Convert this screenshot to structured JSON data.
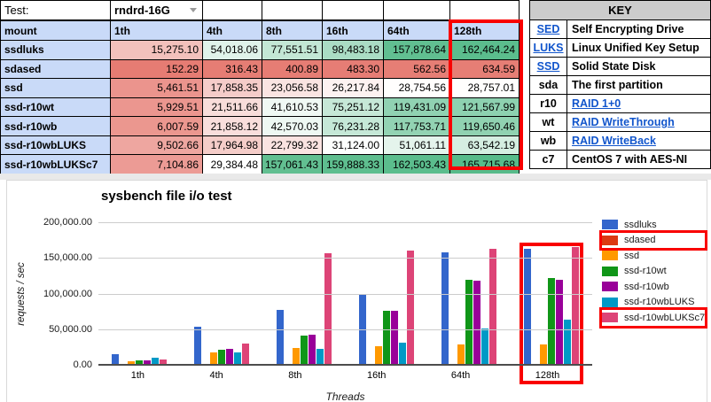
{
  "test_row": {
    "label": "Test:",
    "value": "rndrd-16G"
  },
  "table": {
    "columns": [
      "mount",
      "1th",
      "4th",
      "8th",
      "16th",
      "64th",
      "128th"
    ],
    "rows": [
      {
        "mount": "ssdluks",
        "values": [
          "15,275.10",
          "54,018.06",
          "77,551.51",
          "98,483.18",
          "157,878.64",
          "162,464.24"
        ]
      },
      {
        "mount": "sdased",
        "values": [
          "152.29",
          "316.43",
          "400.89",
          "483.30",
          "562.56",
          "634.59"
        ]
      },
      {
        "mount": "ssd",
        "values": [
          "5,461.51",
          "17,858.35",
          "23,056.58",
          "26,217.84",
          "28,754.56",
          "28,757.01"
        ]
      },
      {
        "mount": "ssd-r10wt",
        "values": [
          "5,929.51",
          "21,511.66",
          "41,610.53",
          "75,251.12",
          "119,431.09",
          "121,567.99"
        ]
      },
      {
        "mount": "ssd-r10wb",
        "values": [
          "6,007.59",
          "21,858.12",
          "42,570.03",
          "76,231.28",
          "117,753.71",
          "119,650.46"
        ]
      },
      {
        "mount": "ssd-r10wbLUKS",
        "values": [
          "9,502.66",
          "17,964.98",
          "22,799.32",
          "31,124.00",
          "51,061.11",
          "63,542.19"
        ]
      },
      {
        "mount": "ssd-r10wbLUKSc7",
        "values": [
          "7,104.86",
          "29,384.48",
          "157,061.43",
          "159,888.33",
          "162,503.43",
          "165,715.68"
        ]
      }
    ],
    "heatmap": {
      "low": "#E67C73",
      "mid": "#FFFFFF",
      "high": "#57BB8A"
    },
    "header_color": "#c9daf8"
  },
  "key": {
    "title": "KEY",
    "entries": [
      {
        "abbr": "SED",
        "desc": "Self Encrypting Drive",
        "abbr_link": true,
        "desc_link": false
      },
      {
        "abbr": "LUKS",
        "desc": "Linux Unified Key Setup",
        "abbr_link": true,
        "desc_link": false
      },
      {
        "abbr": "SSD",
        "desc": "Solid State Disk",
        "abbr_link": true,
        "desc_link": false
      },
      {
        "abbr": "sda",
        "desc": "The first partition",
        "abbr_link": false,
        "desc_link": false
      },
      {
        "abbr": "r10",
        "desc": "RAID 1+0",
        "abbr_link": false,
        "desc_link": true
      },
      {
        "abbr": "wt",
        "desc": "RAID WriteThrough",
        "abbr_link": false,
        "desc_link": true
      },
      {
        "abbr": "wb",
        "desc": "RAID WriteBack",
        "abbr_link": false,
        "desc_link": true
      },
      {
        "abbr": "c7",
        "desc": "CentOS 7 with AES-NI",
        "abbr_link": false,
        "desc_link": false
      }
    ]
  },
  "chart_data": {
    "type": "bar",
    "title": "sysbench file i/o test",
    "xlabel": "Threads",
    "ylabel": "requests / sec",
    "categories": [
      "1th",
      "4th",
      "8th",
      "16th",
      "64th",
      "128th"
    ],
    "series": [
      {
        "name": "ssdluks",
        "color": "#3366CC",
        "values": [
          15275.1,
          54018.06,
          77551.51,
          98483.18,
          157878.64,
          162464.24
        ]
      },
      {
        "name": "sdased",
        "color": "#DC3912",
        "values": [
          152.29,
          316.43,
          400.89,
          483.3,
          562.56,
          634.59
        ]
      },
      {
        "name": "ssd",
        "color": "#FF9900",
        "values": [
          5461.51,
          17858.35,
          23056.58,
          26217.84,
          28754.56,
          28757.01
        ]
      },
      {
        "name": "ssd-r10wt",
        "color": "#109618",
        "values": [
          5929.51,
          21511.66,
          41610.53,
          75251.12,
          119431.09,
          121567.99
        ]
      },
      {
        "name": "ssd-r10wb",
        "color": "#990099",
        "values": [
          6007.59,
          21858.12,
          42570.03,
          76231.28,
          117753.71,
          119650.46
        ]
      },
      {
        "name": "ssd-r10wbLUKS",
        "color": "#0099C6",
        "values": [
          9502.66,
          17964.98,
          22799.32,
          31124.0,
          51061.11,
          63542.19
        ]
      },
      {
        "name": "ssd-r10wbLUKSc7",
        "color": "#DD4477",
        "values": [
          7104.86,
          29384.48,
          157061.43,
          159888.33,
          162503.43,
          165715.68
        ]
      }
    ],
    "ylim": [
      0,
      200000
    ],
    "yticks": [
      "0.00",
      "50,000.00",
      "100,000.00",
      "150,000.00",
      "200,000.00"
    ],
    "grid": true,
    "legend_position": "right",
    "highlighted_legend_items": [
      "sdased",
      "ssd-r10wbLUKSc7"
    ],
    "highlighted_category": "128th"
  },
  "highlight_color": "#f90000"
}
